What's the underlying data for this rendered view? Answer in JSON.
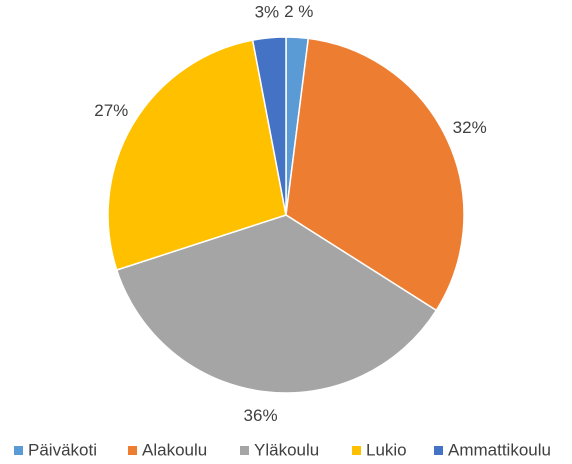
{
  "chart_data": {
    "type": "pie",
    "categories": [
      "Päiväkoti",
      "Alakoulu",
      "Yläkoulu",
      "Lukio",
      "Ammattikoulu"
    ],
    "values": [
      2,
      32,
      36,
      27,
      3
    ],
    "value_labels": [
      "2 %",
      "32%",
      "36%",
      "27%",
      "3%"
    ],
    "colors": [
      "#5b9bd5",
      "#ed7d31",
      "#a5a5a5",
      "#ffc000",
      "#4472c4"
    ],
    "legend": "bottom"
  }
}
